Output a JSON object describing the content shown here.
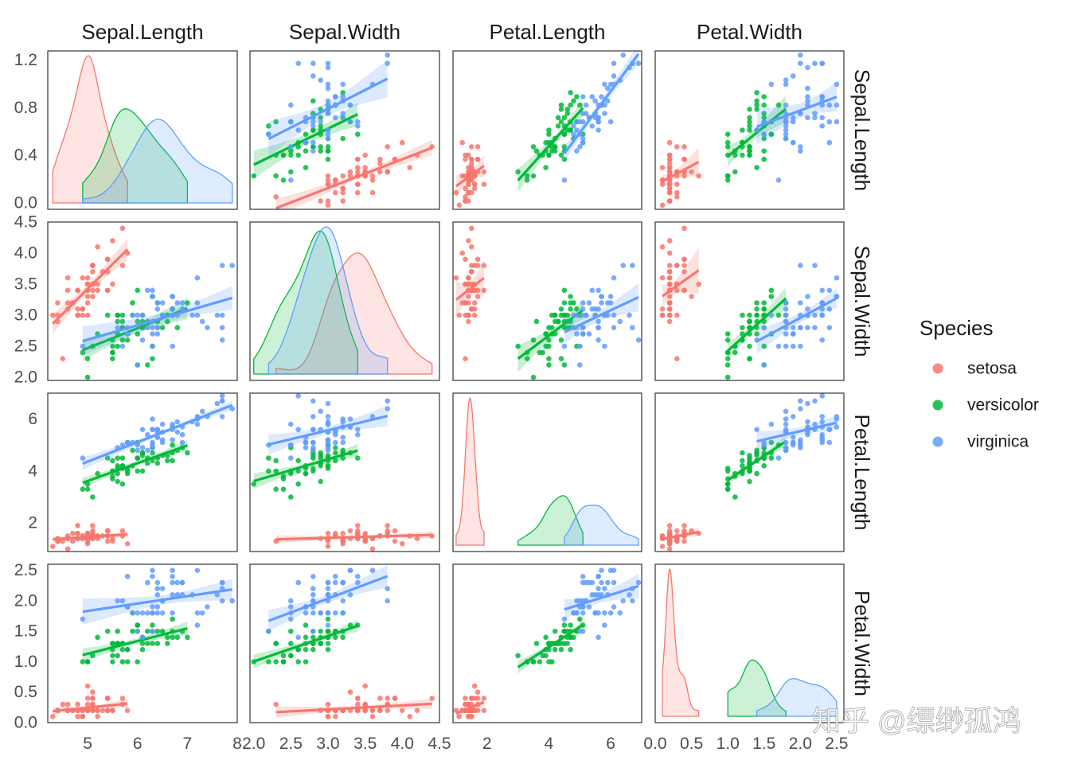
{
  "chart_data": {
    "type": "scatter-matrix",
    "variables": [
      "Sepal.Length",
      "Sepal.Width",
      "Petal.Length",
      "Petal.Width"
    ],
    "legend": {
      "title": "Species",
      "position": "right",
      "entries": [
        {
          "name": "setosa",
          "color": "#F8766D"
        },
        {
          "name": "versicolor",
          "color": "#00BA38"
        },
        {
          "name": "virginica",
          "color": "#619CFF"
        }
      ]
    },
    "axes": {
      "Sepal.Length": {
        "range": [
          4.2,
          8.0
        ],
        "ticks": [
          5,
          6,
          7,
          8
        ]
      },
      "Sepal.Width": {
        "range": [
          1.95,
          4.5
        ],
        "ticks": [
          2.0,
          2.5,
          3.0,
          3.5,
          4.0,
          4.5
        ],
        "tick_labels": [
          "2.0",
          "2.5",
          "3.0",
          "3.5",
          "4.0",
          "4.5"
        ]
      },
      "Petal.Length": {
        "range": [
          0.9,
          7.0
        ],
        "ticks": [
          2,
          4,
          6
        ]
      },
      "Petal.Width": {
        "range": [
          0.0,
          2.6
        ],
        "ticks": [
          0.0,
          0.5,
          1.0,
          1.5,
          2.0,
          2.5
        ],
        "tick_labels": [
          "0.0",
          "0.5",
          "1.0",
          "1.5",
          "2.0",
          "2.5"
        ]
      }
    },
    "density_axis": {
      "range": [
        0.0,
        1.25
      ],
      "ticks": [
        0.0,
        0.4,
        0.8,
        1.2
      ],
      "tick_labels": [
        "0.0",
        "0.4",
        "0.8",
        "1.2"
      ]
    },
    "fill_opacity": 0.2,
    "point_opacity": 0.85,
    "species": [
      {
        "name": "setosa",
        "color": "#F8766D",
        "Sepal.Length": [
          5.1,
          4.9,
          4.7,
          4.6,
          5.0,
          5.4,
          4.6,
          5.0,
          4.4,
          4.9,
          5.4,
          4.8,
          4.8,
          4.3,
          5.8,
          5.7,
          5.4,
          5.1,
          5.7,
          5.1,
          5.4,
          5.1,
          4.6,
          5.1,
          4.8,
          5.0,
          5.0,
          5.2,
          5.2,
          4.7,
          4.8,
          5.4,
          5.2,
          5.5,
          4.9,
          5.0,
          5.5,
          4.9,
          4.4,
          5.1,
          5.0,
          4.5,
          4.4,
          5.0,
          5.1,
          4.8,
          5.1,
          4.6,
          5.3,
          5.0
        ],
        "Sepal.Width": [
          3.5,
          3.0,
          3.2,
          3.1,
          3.6,
          3.9,
          3.4,
          3.4,
          2.9,
          3.1,
          3.7,
          3.4,
          3.0,
          3.0,
          4.0,
          4.4,
          3.9,
          3.5,
          3.8,
          3.8,
          3.4,
          3.7,
          3.6,
          3.3,
          3.4,
          3.0,
          3.4,
          3.5,
          3.4,
          3.2,
          3.1,
          3.4,
          4.1,
          4.2,
          3.1,
          3.2,
          3.5,
          3.6,
          3.0,
          3.4,
          3.5,
          2.3,
          3.2,
          3.5,
          3.8,
          3.0,
          3.8,
          3.2,
          3.7,
          3.3
        ],
        "Petal.Length": [
          1.4,
          1.4,
          1.3,
          1.5,
          1.4,
          1.7,
          1.4,
          1.5,
          1.4,
          1.5,
          1.5,
          1.6,
          1.4,
          1.1,
          1.2,
          1.5,
          1.3,
          1.4,
          1.7,
          1.5,
          1.7,
          1.5,
          1.0,
          1.7,
          1.9,
          1.6,
          1.6,
          1.5,
          1.4,
          1.6,
          1.6,
          1.5,
          1.5,
          1.4,
          1.5,
          1.2,
          1.3,
          1.4,
          1.3,
          1.5,
          1.3,
          1.3,
          1.3,
          1.6,
          1.9,
          1.4,
          1.6,
          1.4,
          1.5,
          1.4
        ],
        "Petal.Width": [
          0.2,
          0.2,
          0.2,
          0.2,
          0.2,
          0.4,
          0.3,
          0.2,
          0.2,
          0.1,
          0.2,
          0.2,
          0.1,
          0.1,
          0.2,
          0.4,
          0.4,
          0.3,
          0.3,
          0.3,
          0.2,
          0.4,
          0.2,
          0.5,
          0.2,
          0.2,
          0.4,
          0.2,
          0.2,
          0.2,
          0.2,
          0.4,
          0.1,
          0.2,
          0.2,
          0.2,
          0.2,
          0.1,
          0.2,
          0.2,
          0.3,
          0.3,
          0.2,
          0.6,
          0.4,
          0.3,
          0.2,
          0.2,
          0.2,
          0.2
        ]
      },
      {
        "name": "versicolor",
        "color": "#00BA38",
        "Sepal.Length": [
          7.0,
          6.4,
          6.9,
          5.5,
          6.5,
          5.7,
          6.3,
          4.9,
          6.6,
          5.2,
          5.0,
          5.9,
          6.0,
          6.1,
          5.6,
          6.7,
          5.6,
          5.8,
          6.2,
          5.6,
          5.9,
          6.1,
          6.3,
          6.1,
          6.4,
          6.6,
          6.8,
          6.7,
          6.0,
          5.7,
          5.5,
          5.5,
          5.8,
          6.0,
          5.4,
          6.0,
          6.7,
          6.3,
          5.6,
          5.5,
          5.5,
          6.1,
          5.8,
          5.0,
          5.6,
          5.7,
          5.7,
          6.2,
          5.1,
          5.7
        ],
        "Sepal.Width": [
          3.2,
          3.2,
          3.1,
          2.3,
          2.8,
          2.8,
          3.3,
          2.4,
          2.9,
          2.7,
          2.0,
          3.0,
          2.2,
          2.9,
          2.9,
          3.1,
          3.0,
          2.7,
          2.2,
          2.5,
          3.2,
          2.8,
          2.5,
          2.8,
          2.9,
          3.0,
          2.8,
          3.0,
          2.9,
          2.6,
          2.4,
          2.4,
          2.7,
          2.7,
          3.0,
          3.4,
          3.1,
          2.3,
          3.0,
          2.5,
          2.6,
          3.0,
          2.6,
          2.3,
          2.7,
          3.0,
          2.9,
          2.9,
          2.5,
          2.8
        ],
        "Petal.Length": [
          4.7,
          4.5,
          4.9,
          4.0,
          4.6,
          4.5,
          4.7,
          3.3,
          4.6,
          3.9,
          3.5,
          4.2,
          4.0,
          4.7,
          3.6,
          4.4,
          4.5,
          4.1,
          4.5,
          3.9,
          4.8,
          4.0,
          4.9,
          4.7,
          4.3,
          4.4,
          4.8,
          5.0,
          4.5,
          3.5,
          3.8,
          3.7,
          3.9,
          5.1,
          4.5,
          4.5,
          4.7,
          4.4,
          4.1,
          4.0,
          4.4,
          4.6,
          4.0,
          3.3,
          4.2,
          4.2,
          4.2,
          4.3,
          3.0,
          4.1
        ],
        "Petal.Width": [
          1.4,
          1.5,
          1.5,
          1.3,
          1.5,
          1.3,
          1.6,
          1.0,
          1.3,
          1.4,
          1.0,
          1.5,
          1.0,
          1.4,
          1.3,
          1.4,
          1.5,
          1.0,
          1.5,
          1.1,
          1.8,
          1.3,
          1.5,
          1.2,
          1.3,
          1.4,
          1.4,
          1.7,
          1.5,
          1.0,
          1.1,
          1.0,
          1.2,
          1.6,
          1.5,
          1.6,
          1.5,
          1.3,
          1.3,
          1.3,
          1.2,
          1.4,
          1.2,
          1.0,
          1.3,
          1.2,
          1.3,
          1.3,
          1.1,
          1.3
        ]
      },
      {
        "name": "virginica",
        "color": "#619CFF",
        "Sepal.Length": [
          6.3,
          5.8,
          7.1,
          6.3,
          6.5,
          7.6,
          4.9,
          7.3,
          6.7,
          7.2,
          6.5,
          6.4,
          6.8,
          5.7,
          5.8,
          6.4,
          6.5,
          7.7,
          7.7,
          6.0,
          6.9,
          5.6,
          7.7,
          6.3,
          6.7,
          7.2,
          6.2,
          6.1,
          6.4,
          7.2,
          7.4,
          7.9,
          6.4,
          6.3,
          6.1,
          7.7,
          6.3,
          6.4,
          6.0,
          6.9,
          6.7,
          6.9,
          5.8,
          6.8,
          6.7,
          6.7,
          6.3,
          6.5,
          6.2,
          5.9
        ],
        "Sepal.Width": [
          3.3,
          2.7,
          3.0,
          2.9,
          3.0,
          3.0,
          2.5,
          2.9,
          2.5,
          3.6,
          3.2,
          2.7,
          3.0,
          2.5,
          2.8,
          3.2,
          3.0,
          3.8,
          2.6,
          2.2,
          3.2,
          2.8,
          2.8,
          2.7,
          3.3,
          3.2,
          2.8,
          3.0,
          2.8,
          3.0,
          2.8,
          3.8,
          2.8,
          2.8,
          2.6,
          3.0,
          3.4,
          3.1,
          3.0,
          3.1,
          3.1,
          3.1,
          2.7,
          3.2,
          3.3,
          3.0,
          2.5,
          3.0,
          3.4,
          3.0
        ],
        "Petal.Length": [
          6.0,
          5.1,
          5.9,
          5.6,
          5.8,
          6.6,
          4.5,
          6.3,
          5.8,
          6.1,
          5.1,
          5.3,
          5.5,
          5.0,
          5.1,
          5.3,
          5.5,
          6.7,
          6.9,
          5.0,
          5.7,
          4.9,
          6.7,
          4.9,
          5.7,
          6.0,
          4.8,
          4.9,
          5.6,
          5.8,
          6.1,
          6.4,
          5.6,
          5.1,
          5.6,
          6.1,
          5.6,
          5.5,
          4.8,
          5.4,
          5.6,
          5.1,
          5.1,
          5.9,
          5.7,
          5.2,
          5.0,
          5.2,
          5.4,
          5.1
        ],
        "Petal.Width": [
          2.5,
          1.9,
          2.1,
          1.8,
          2.2,
          2.1,
          1.7,
          1.8,
          1.8,
          2.5,
          2.0,
          1.9,
          2.1,
          2.0,
          2.4,
          2.3,
          1.8,
          2.2,
          2.3,
          1.5,
          2.3,
          2.0,
          2.0,
          1.8,
          2.1,
          1.8,
          1.8,
          1.8,
          2.1,
          1.6,
          1.9,
          2.0,
          2.2,
          1.5,
          1.4,
          2.3,
          2.4,
          1.8,
          1.8,
          2.1,
          2.4,
          2.3,
          1.9,
          2.3,
          2.5,
          2.3,
          1.9,
          2.0,
          2.3,
          1.8
        ]
      }
    ]
  },
  "watermark": "知乎 @缥缈孤鸿"
}
